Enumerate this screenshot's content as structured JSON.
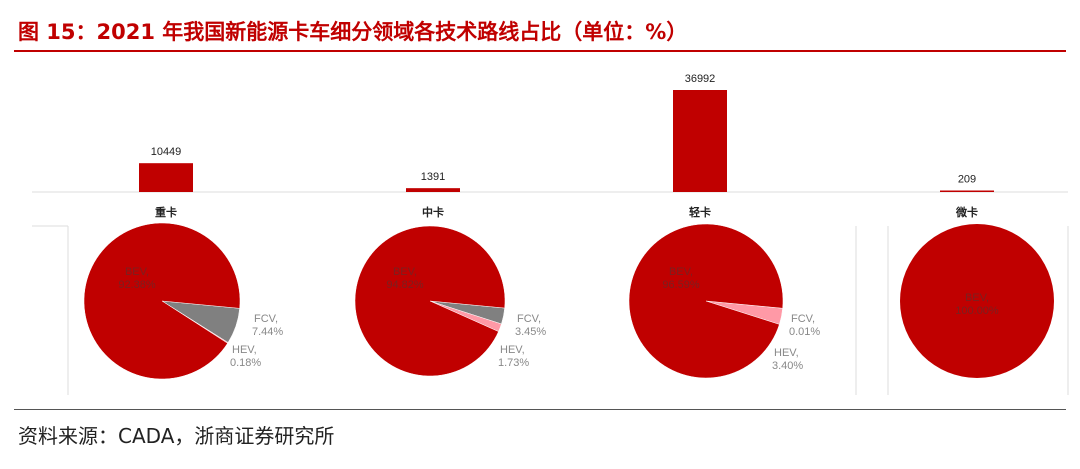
{
  "title": "图 15：2021 年我国新能源卡车细分领域各技术路线占比（单位：%）",
  "source": "资料来源：CADA，浙商证券研究所",
  "chart_data": [
    {
      "type": "bar",
      "categories": [
        "重卡",
        "中卡",
        "轻卡",
        "微卡"
      ],
      "values": [
        10449,
        1391,
        36992,
        209
      ],
      "color": "#c00000"
    },
    {
      "type": "pie",
      "category": "重卡",
      "slices": [
        {
          "label": "FCV",
          "value": 7.44,
          "text": "7.44%",
          "color": "#808080"
        },
        {
          "label": "HEV",
          "value": 0.18,
          "text": "0.18%",
          "color": "#ff99a6"
        },
        {
          "label": "BEV",
          "value": 92.38,
          "text": "92.38%",
          "color": "#c00000"
        }
      ]
    },
    {
      "type": "pie",
      "category": "中卡",
      "slices": [
        {
          "label": "FCV",
          "value": 3.45,
          "text": "3.45%",
          "color": "#808080"
        },
        {
          "label": "HEV",
          "value": 1.73,
          "text": "1.73%",
          "color": "#ff99a6"
        },
        {
          "label": "BEV",
          "value": 94.82,
          "text": "94.82%",
          "color": "#c00000"
        }
      ]
    },
    {
      "type": "pie",
      "category": "轻卡",
      "slices": [
        {
          "label": "FCV",
          "value": 0.01,
          "text": "0.01%",
          "color": "#808080"
        },
        {
          "label": "HEV",
          "value": 3.4,
          "text": "3.40%",
          "color": "#ff99a6"
        },
        {
          "label": "BEV",
          "value": 96.59,
          "text": "96.59%",
          "color": "#c00000"
        }
      ]
    },
    {
      "type": "pie",
      "category": "微卡",
      "slices": [
        {
          "label": "BEV",
          "value": 100.0,
          "text": "100.00%",
          "color": "#c00000"
        }
      ]
    }
  ]
}
